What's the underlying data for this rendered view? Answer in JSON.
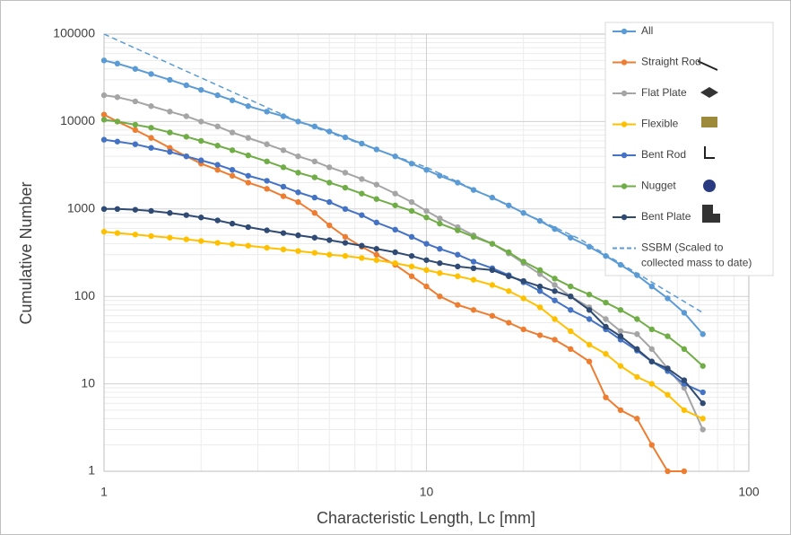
{
  "chart_data": {
    "type": "line",
    "x_label": "Characteristic Length, Lc [mm]",
    "y_label": "Cumulative Number",
    "log_x": true,
    "log_y": true,
    "grid": true,
    "legend": "right",
    "xlim": [
      1,
      100
    ],
    "ylim": [
      1,
      100000
    ],
    "xticks": [
      1,
      10,
      100
    ],
    "yticks": [
      1,
      10,
      100,
      1000,
      10000,
      100000
    ],
    "x": [
      1,
      1.1,
      1.25,
      1.4,
      1.6,
      1.8,
      2,
      2.25,
      2.5,
      2.8,
      3.2,
      3.6,
      4,
      4.5,
      5,
      5.6,
      6.3,
      7,
      8,
      9,
      10,
      11,
      12.5,
      14,
      16,
      18,
      20,
      22.5,
      25,
      28,
      32,
      36,
      40,
      45,
      50,
      56,
      63,
      72
    ],
    "series": [
      {
        "name": "All",
        "color": "#5b9bd5",
        "values": [
          50000,
          46000,
          40000,
          35000,
          30000,
          26000,
          23000,
          20000,
          17500,
          15000,
          13000,
          11500,
          10000,
          8800,
          7700,
          6600,
          5600,
          4800,
          4000,
          3300,
          2800,
          2400,
          2000,
          1650,
          1350,
          1100,
          900,
          730,
          590,
          470,
          370,
          290,
          230,
          175,
          130,
          95,
          65,
          37
        ]
      },
      {
        "name": "Straight Rod",
        "color": "#ed7d31",
        "values": [
          12000,
          10000,
          8000,
          6500,
          5000,
          4000,
          3300,
          2800,
          2400,
          2000,
          1700,
          1400,
          1200,
          900,
          650,
          480,
          370,
          300,
          230,
          170,
          130,
          100,
          80,
          70,
          60,
          50,
          42,
          36,
          32,
          25,
          18,
          7,
          5,
          4,
          2,
          1,
          1,
          null
        ]
      },
      {
        "name": "Flat Plate",
        "color": "#a5a5a5",
        "values": [
          20000,
          19000,
          17000,
          15000,
          13000,
          11500,
          10000,
          8800,
          7500,
          6500,
          5500,
          4700,
          4000,
          3500,
          3000,
          2600,
          2200,
          1900,
          1500,
          1200,
          950,
          780,
          620,
          500,
          400,
          310,
          240,
          180,
          135,
          100,
          75,
          55,
          40,
          37,
          25,
          15,
          9,
          3
        ]
      },
      {
        "name": "Flexible",
        "color": "#ffc000",
        "values": [
          550,
          530,
          510,
          490,
          470,
          450,
          430,
          410,
          395,
          380,
          360,
          345,
          330,
          315,
          300,
          290,
          275,
          260,
          240,
          220,
          200,
          185,
          170,
          155,
          135,
          115,
          95,
          75,
          55,
          40,
          28,
          22,
          16,
          12,
          10,
          7.5,
          5,
          4
        ]
      },
      {
        "name": "Bent Rod",
        "color": "#4472c4",
        "values": [
          6200,
          5900,
          5500,
          5000,
          4500,
          4000,
          3600,
          3200,
          2800,
          2400,
          2100,
          1800,
          1550,
          1350,
          1200,
          1000,
          850,
          700,
          580,
          480,
          400,
          350,
          300,
          250,
          210,
          175,
          145,
          115,
          90,
          70,
          55,
          42,
          32,
          24,
          18,
          14,
          10,
          8
        ]
      },
      {
        "name": "Nugget",
        "color": "#70ad47",
        "values": [
          10500,
          10000,
          9200,
          8500,
          7500,
          6700,
          6000,
          5300,
          4700,
          4100,
          3500,
          3000,
          2600,
          2300,
          2000,
          1750,
          1500,
          1300,
          1100,
          950,
          800,
          680,
          570,
          480,
          400,
          320,
          250,
          200,
          160,
          130,
          105,
          85,
          70,
          55,
          42,
          35,
          25,
          16
        ]
      },
      {
        "name": "Bent Plate",
        "color": "#2f4a73",
        "values": [
          1000,
          1000,
          980,
          950,
          900,
          850,
          800,
          740,
          680,
          620,
          570,
          530,
          500,
          470,
          440,
          410,
          380,
          350,
          320,
          290,
          260,
          240,
          220,
          210,
          200,
          170,
          150,
          130,
          115,
          100,
          70,
          45,
          35,
          25,
          18,
          15,
          11,
          6
        ]
      },
      {
        "name": "SSBM (Scaled to collected mass to date)",
        "color": "#5b9bd5",
        "dashed": true,
        "x": [
          1,
          4,
          10,
          30,
          72
        ],
        "values": [
          100000,
          10000,
          3000,
          450,
          65
        ]
      }
    ]
  }
}
